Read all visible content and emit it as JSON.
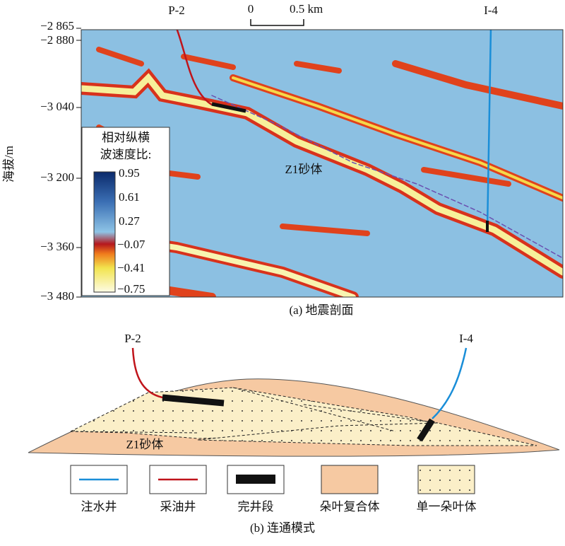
{
  "panel_a": {
    "y_axis_label": "海拔/m",
    "y_ticks": [
      "−2 865",
      "−2 880",
      "−3 040",
      "−3 200",
      "−3 360",
      "−3 480"
    ],
    "scale_bar": {
      "start": "0",
      "end": "0.5 km"
    },
    "wells": [
      "P-2",
      "I-4"
    ],
    "body_label": "Z1砂体",
    "colorbar": {
      "title_lines": [
        "相对纵横",
        "波速度比:"
      ],
      "labels": [
        "0.95",
        "0.61",
        "0.27",
        "−0.07",
        "−0.41",
        "−0.75"
      ]
    },
    "caption": "(a) 地震剖面"
  },
  "panel_b": {
    "wells": [
      "P-2",
      "I-4"
    ],
    "body_label": "Z1砂体",
    "legend": [
      "注水井",
      "采油井",
      "完井段",
      "朵叶复合体",
      "单一朵叶体"
    ],
    "caption": "(b) 连通模式"
  }
}
